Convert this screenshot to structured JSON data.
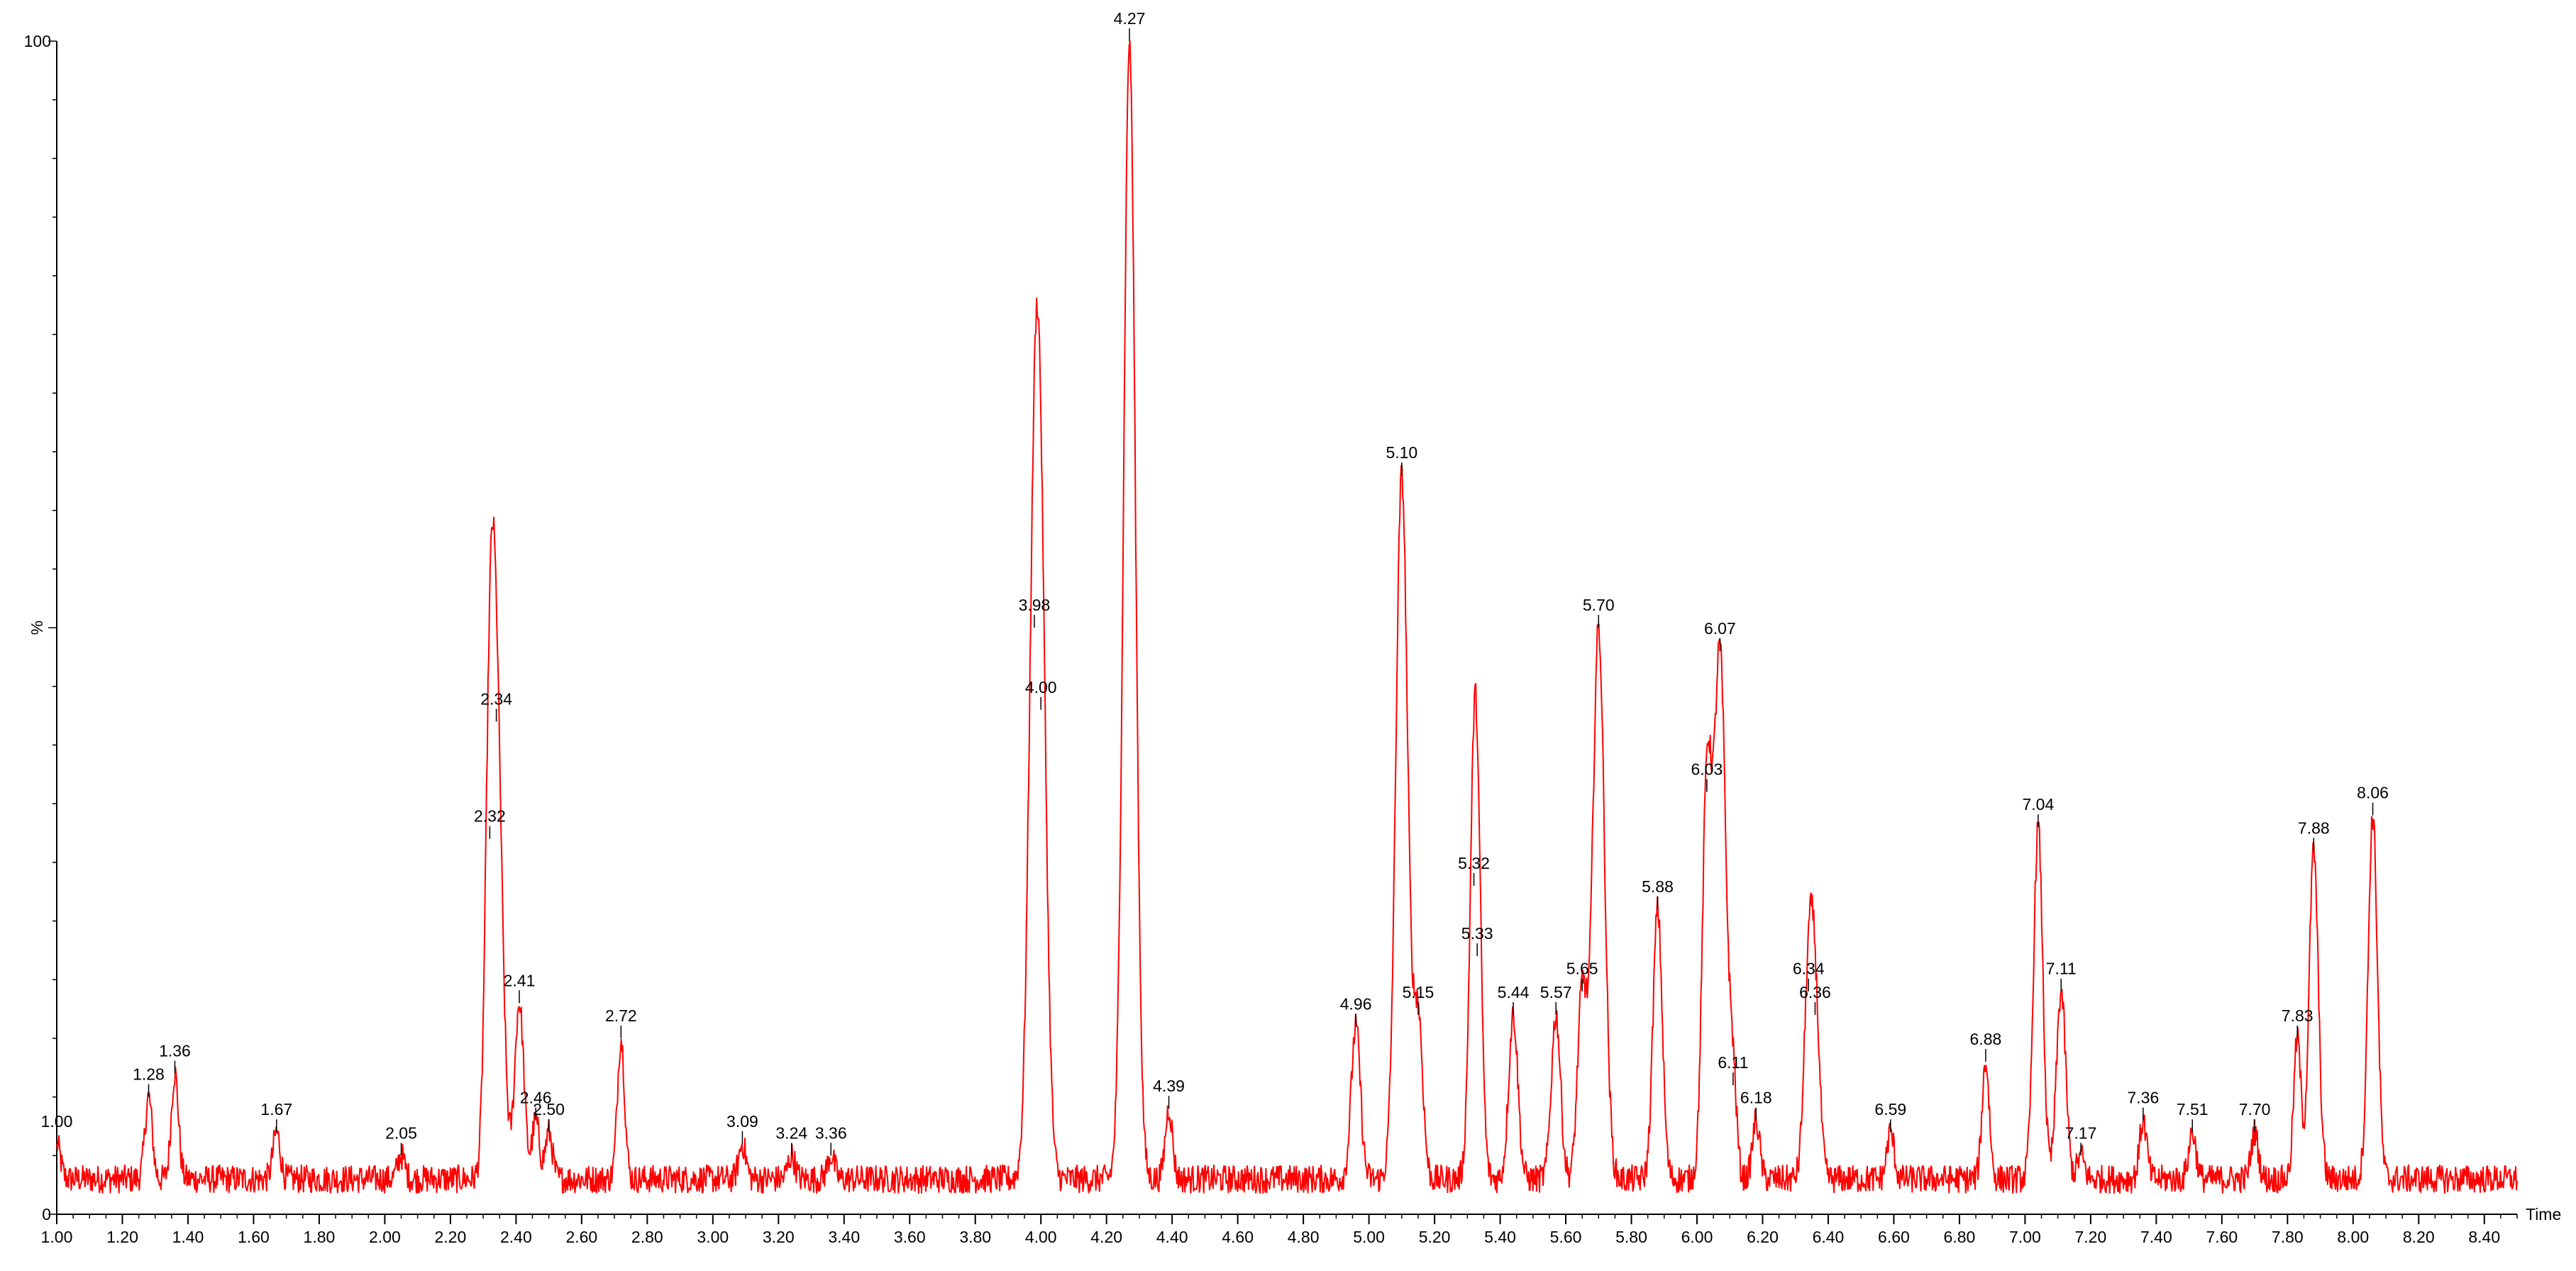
{
  "chart_data": {
    "type": "line",
    "xlabel": "Time",
    "ylabel": "%",
    "xlim": [
      1.0,
      8.5
    ],
    "ylim": [
      0,
      100
    ],
    "y_ticks_labeled": [
      "0",
      "100"
    ],
    "x_ticks": [
      "1.00",
      "1.20",
      "1.40",
      "1.60",
      "1.80",
      "2.00",
      "2.20",
      "2.40",
      "2.60",
      "2.80",
      "3.00",
      "3.20",
      "3.40",
      "3.60",
      "3.80",
      "4.00",
      "4.20",
      "4.40",
      "4.60",
      "4.80",
      "5.00",
      "5.20",
      "5.40",
      "5.60",
      "5.80",
      "6.00",
      "6.20",
      "6.40",
      "6.60",
      "6.80",
      "7.00",
      "7.20",
      "7.40",
      "7.60",
      "7.80",
      "8.00",
      "8.20",
      "8.40"
    ],
    "line_color": "#ff0000",
    "grid": false,
    "baseline": 3,
    "series": [
      {
        "peaks": [
          {
            "label": "1.00",
            "x": 1.0,
            "y": 6
          },
          {
            "label": "1.28",
            "x": 1.28,
            "y": 10
          },
          {
            "label": "1.36",
            "x": 1.36,
            "y": 12
          },
          {
            "label": "1.67",
            "x": 1.67,
            "y": 7
          },
          {
            "label": "2.05",
            "x": 2.05,
            "y": 5
          },
          {
            "label": "2.32",
            "x": 2.32,
            "y": 32
          },
          {
            "label": "2.34",
            "x": 2.34,
            "y": 42
          },
          {
            "label": "2.41",
            "x": 2.41,
            "y": 18
          },
          {
            "label": "2.46",
            "x": 2.46,
            "y": 8
          },
          {
            "label": "2.50",
            "x": 2.5,
            "y": 7
          },
          {
            "label": "2.72",
            "x": 2.72,
            "y": 15
          },
          {
            "label": "3.09",
            "x": 3.09,
            "y": 6
          },
          {
            "label": "3.24",
            "x": 3.24,
            "y": 5
          },
          {
            "label": "3.36",
            "x": 3.36,
            "y": 5
          },
          {
            "label": "3.98",
            "x": 3.98,
            "y": 50
          },
          {
            "label": "4.00",
            "x": 4.0,
            "y": 43
          },
          {
            "label": "4.27",
            "x": 4.27,
            "y": 100
          },
          {
            "label": "4.39",
            "x": 4.39,
            "y": 9
          },
          {
            "label": "4.96",
            "x": 4.96,
            "y": 16
          },
          {
            "label": "5.10",
            "x": 5.1,
            "y": 63
          },
          {
            "label": "5.15",
            "x": 5.15,
            "y": 17
          },
          {
            "label": "5.32",
            "x": 5.32,
            "y": 28
          },
          {
            "label": "5.33",
            "x": 5.33,
            "y": 22
          },
          {
            "label": "5.44",
            "x": 5.44,
            "y": 17
          },
          {
            "label": "5.57",
            "x": 5.57,
            "y": 17
          },
          {
            "label": "5.65",
            "x": 5.65,
            "y": 19
          },
          {
            "label": "5.70",
            "x": 5.7,
            "y": 50
          },
          {
            "label": "5.88",
            "x": 5.88,
            "y": 26
          },
          {
            "label": "6.03",
            "x": 6.03,
            "y": 36
          },
          {
            "label": "6.07",
            "x": 6.07,
            "y": 48
          },
          {
            "label": "6.11",
            "x": 6.11,
            "y": 11
          },
          {
            "label": "6.18",
            "x": 6.18,
            "y": 8
          },
          {
            "label": "6.34",
            "x": 6.34,
            "y": 19
          },
          {
            "label": "6.36",
            "x": 6.36,
            "y": 17
          },
          {
            "label": "6.59",
            "x": 6.59,
            "y": 7
          },
          {
            "label": "6.88",
            "x": 6.88,
            "y": 13
          },
          {
            "label": "7.04",
            "x": 7.04,
            "y": 33
          },
          {
            "label": "7.11",
            "x": 7.11,
            "y": 19
          },
          {
            "label": "7.17",
            "x": 7.17,
            "y": 5
          },
          {
            "label": "7.36",
            "x": 7.36,
            "y": 8
          },
          {
            "label": "7.51",
            "x": 7.51,
            "y": 7
          },
          {
            "label": "7.70",
            "x": 7.7,
            "y": 7
          },
          {
            "label": "7.83",
            "x": 7.83,
            "y": 15
          },
          {
            "label": "7.88",
            "x": 7.88,
            "y": 31
          },
          {
            "label": "8.06",
            "x": 8.06,
            "y": 34
          }
        ]
      }
    ]
  }
}
